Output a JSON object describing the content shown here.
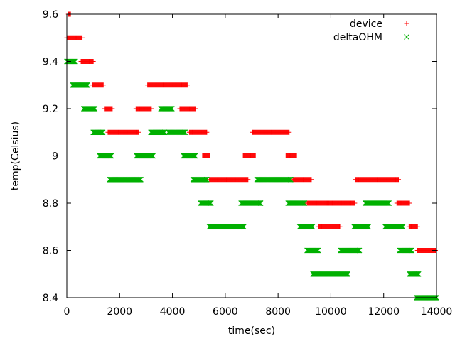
{
  "chart_data": {
    "type": "scatter",
    "title": "",
    "xlabel": "time(sec)",
    "ylabel": "temp(Celsius)",
    "xlim": [
      0,
      14000
    ],
    "ylim": [
      8.4,
      9.6
    ],
    "xticks": [
      0,
      2000,
      4000,
      6000,
      8000,
      10000,
      12000,
      14000
    ],
    "xtick_labels": [
      "0",
      "2000",
      "4000",
      "6000",
      "8000",
      "10000",
      "12000",
      "14000"
    ],
    "yticks": [
      8.4,
      8.6,
      8.8,
      9.0,
      9.2,
      9.4,
      9.6
    ],
    "ytick_labels": [
      "8.4",
      "8.6",
      "8.8",
      "9",
      "9.2",
      "9.4",
      "9.6"
    ],
    "grid": false,
    "legend_position": "top-right",
    "series": [
      {
        "name": "device",
        "color": "#ff0000",
        "marker": "plus",
        "segments": [
          {
            "y": 9.6,
            "x": [
              60,
              140
            ]
          },
          {
            "y": 9.5,
            "x": [
              0,
              580
            ]
          },
          {
            "y": 9.4,
            "x": [
              540,
              1000
            ]
          },
          {
            "y": 9.3,
            "x": [
              960,
              1380
            ]
          },
          {
            "y": 9.2,
            "x": [
              1420,
              1720
            ]
          },
          {
            "y": 9.1,
            "x": [
              1560,
              2720
            ]
          },
          {
            "y": 9.2,
            "x": [
              2620,
              3200
            ]
          },
          {
            "y": 9.3,
            "x": [
              3060,
              4560
            ]
          },
          {
            "y": 9.2,
            "x": [
              4280,
              4880
            ]
          },
          {
            "y": 9.1,
            "x": [
              4640,
              5300
            ]
          },
          {
            "y": 9.0,
            "x": [
              5140,
              5420
            ]
          },
          {
            "y": 8.9,
            "x": [
              5400,
              6860
            ]
          },
          {
            "y": 9.0,
            "x": [
              6680,
              7140
            ]
          },
          {
            "y": 9.1,
            "x": [
              7040,
              8420
            ]
          },
          {
            "y": 9.0,
            "x": [
              8300,
              8700
            ]
          },
          {
            "y": 8.9,
            "x": [
              8560,
              9260
            ]
          },
          {
            "y": 8.8,
            "x": [
              9100,
              9920
            ]
          },
          {
            "y": 8.7,
            "x": [
              9540,
              10340
            ]
          },
          {
            "y": 8.8,
            "x": [
              9860,
              10900
            ]
          },
          {
            "y": 8.9,
            "x": [
              10940,
              12560
            ]
          },
          {
            "y": 8.8,
            "x": [
              12500,
              12980
            ]
          },
          {
            "y": 8.7,
            "x": [
              12960,
              13280
            ]
          },
          {
            "y": 8.6,
            "x": [
              13280,
              13960
            ]
          }
        ]
      },
      {
        "name": "deltaOHM",
        "color": "#00b000",
        "marker": "cross",
        "segments": [
          {
            "y": 9.4,
            "x": [
              0,
              320
            ]
          },
          {
            "y": 9.3,
            "x": [
              220,
              780
            ]
          },
          {
            "y": 9.2,
            "x": [
              640,
              1060
            ]
          },
          {
            "y": 9.1,
            "x": [
              1000,
              1360
            ]
          },
          {
            "y": 9.0,
            "x": [
              1240,
              1680
            ]
          },
          {
            "y": 8.9,
            "x": [
              1620,
              2800
            ]
          },
          {
            "y": 9.0,
            "x": [
              2640,
              3260
            ]
          },
          {
            "y": 9.1,
            "x": [
              3180,
              3700
            ]
          },
          {
            "y": 9.2,
            "x": [
              3560,
              3980
            ]
          },
          {
            "y": 9.1,
            "x": [
              3840,
              4480
            ]
          },
          {
            "y": 9.0,
            "x": [
              4420,
              4860
            ]
          },
          {
            "y": 8.9,
            "x": [
              4780,
              5300
            ]
          },
          {
            "y": 8.8,
            "x": [
              5060,
              5460
            ]
          },
          {
            "y": 8.7,
            "x": [
              5400,
              6700
            ]
          },
          {
            "y": 8.8,
            "x": [
              6600,
              7340
            ]
          },
          {
            "y": 8.9,
            "x": [
              7200,
              8480
            ]
          },
          {
            "y": 8.8,
            "x": [
              8380,
              9000
            ]
          },
          {
            "y": 8.7,
            "x": [
              8820,
              9300
            ]
          },
          {
            "y": 8.6,
            "x": [
              9100,
              9520
            ]
          },
          {
            "y": 8.5,
            "x": [
              9320,
              10640
            ]
          },
          {
            "y": 8.6,
            "x": [
              10360,
              11080
            ]
          },
          {
            "y": 8.7,
            "x": [
              10880,
              11420
            ]
          },
          {
            "y": 8.8,
            "x": [
              11300,
              12200
            ]
          },
          {
            "y": 8.7,
            "x": [
              12060,
              12720
            ]
          },
          {
            "y": 8.6,
            "x": [
              12600,
              13060
            ]
          },
          {
            "y": 8.5,
            "x": [
              12980,
              13320
            ]
          },
          {
            "y": 8.4,
            "x": [
              13240,
              14000
            ]
          }
        ]
      }
    ]
  }
}
